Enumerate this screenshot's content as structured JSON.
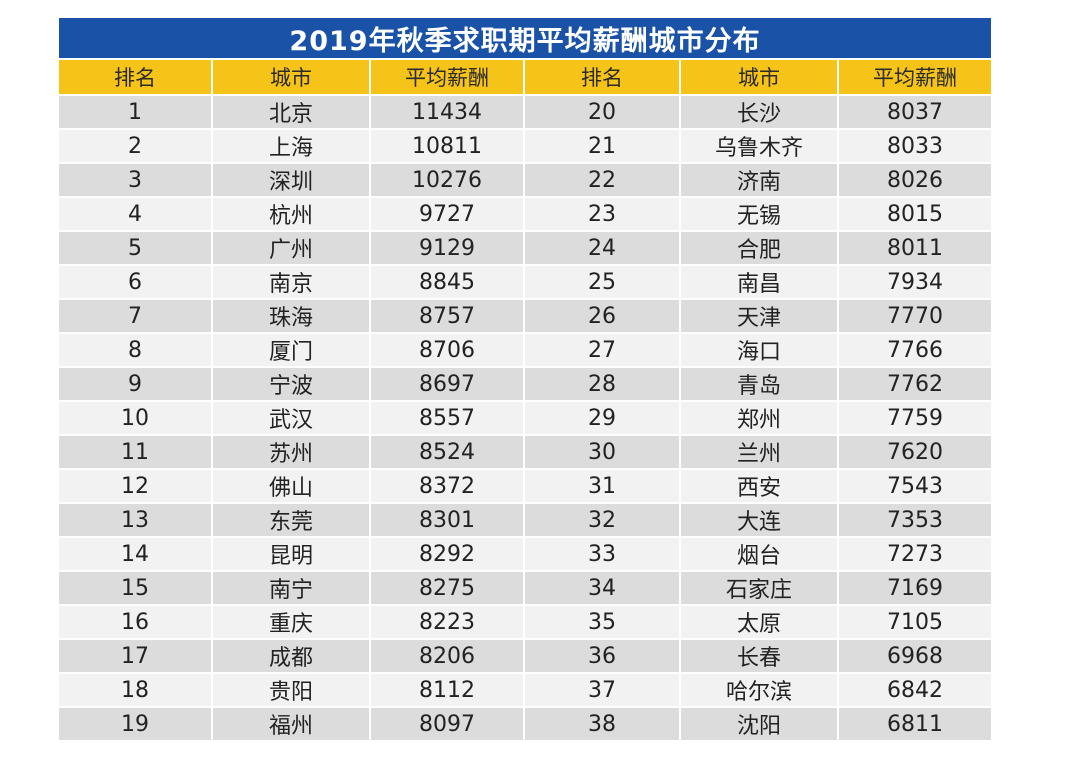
{
  "chart_data": {
    "type": "table",
    "title": "2019年秋季求职期平均薪酬城市分布",
    "columns": [
      "排名",
      "城市",
      "平均薪酬",
      "排名",
      "城市",
      "平均薪酬"
    ],
    "rows": [
      [
        1,
        "北京",
        11434,
        20,
        "长沙",
        8037
      ],
      [
        2,
        "上海",
        10811,
        21,
        "乌鲁木齐",
        8033
      ],
      [
        3,
        "深圳",
        10276,
        22,
        "济南",
        8026
      ],
      [
        4,
        "杭州",
        9727,
        23,
        "无锡",
        8015
      ],
      [
        5,
        "广州",
        9129,
        24,
        "合肥",
        8011
      ],
      [
        6,
        "南京",
        8845,
        25,
        "南昌",
        7934
      ],
      [
        7,
        "珠海",
        8757,
        26,
        "天津",
        7770
      ],
      [
        8,
        "厦门",
        8706,
        27,
        "海口",
        7766
      ],
      [
        9,
        "宁波",
        8697,
        28,
        "青岛",
        7762
      ],
      [
        10,
        "武汉",
        8557,
        29,
        "郑州",
        7759
      ],
      [
        11,
        "苏州",
        8524,
        30,
        "兰州",
        7620
      ],
      [
        12,
        "佛山",
        8372,
        31,
        "西安",
        7543
      ],
      [
        13,
        "东莞",
        8301,
        32,
        "大连",
        7353
      ],
      [
        14,
        "昆明",
        8292,
        33,
        "烟台",
        7273
      ],
      [
        15,
        "南宁",
        8275,
        34,
        "石家庄",
        7169
      ],
      [
        16,
        "重庆",
        8223,
        35,
        "太原",
        7105
      ],
      [
        17,
        "成都",
        8206,
        36,
        "长春",
        6968
      ],
      [
        18,
        "贵阳",
        8112,
        37,
        "哈尔滨",
        6842
      ],
      [
        19,
        "福州",
        8097,
        38,
        "沈阳",
        6811
      ]
    ]
  },
  "colors": {
    "title_background": "#1a52a8",
    "title_text": "#ffffff",
    "header_background": "#f6c319",
    "row_odd": "#dcdcdc",
    "row_even": "#f2f2f2"
  }
}
